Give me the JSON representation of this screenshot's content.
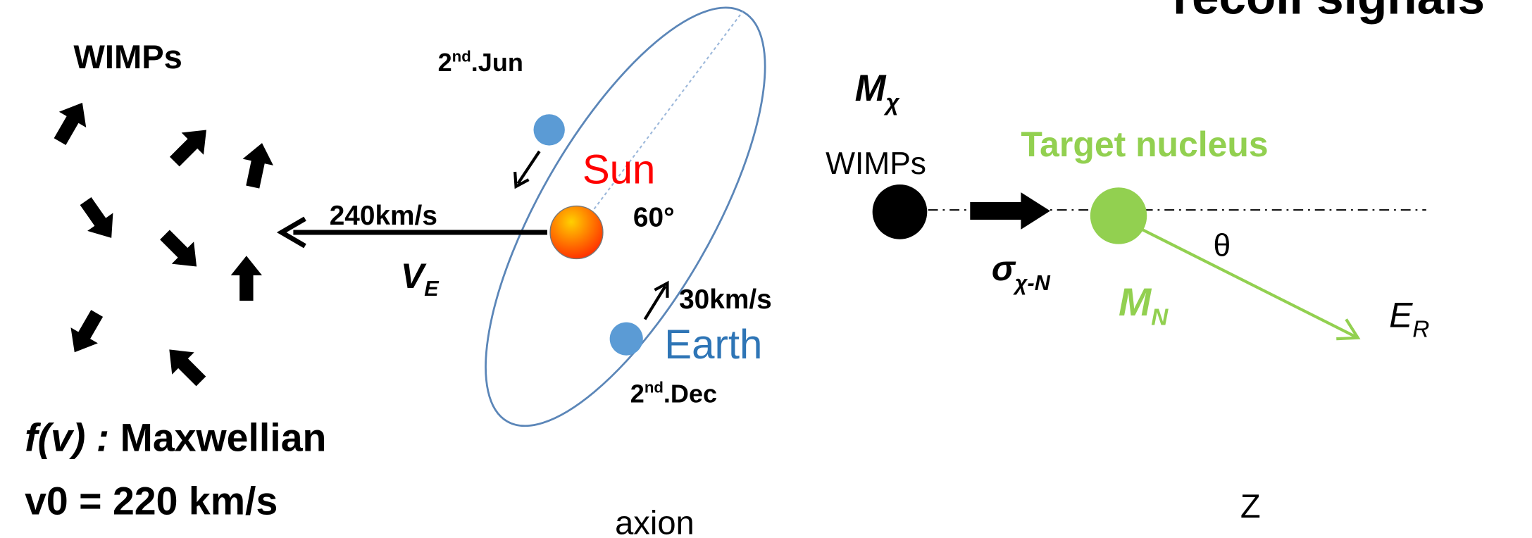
{
  "title": "recoil signals",
  "halo": {
    "label": "WIMPs",
    "distribution": {
      "func": "f(v) :",
      "name": "Maxwellian"
    },
    "v0": "v0 = 220 km/s"
  },
  "orbit": {
    "june": {
      "num": "2",
      "sup": "nd",
      "text": ".Jun"
    },
    "sun": "Sun",
    "angle": "60°",
    "sun_speed": "240km/s",
    "ve": {
      "main": "V",
      "sub": "E"
    },
    "earth_speed": "30km/s",
    "earth": "Earth",
    "december": {
      "num": "2",
      "sup": "nd",
      "text": ".Dec"
    },
    "caption": "axion"
  },
  "scattering": {
    "mass": {
      "main": "M",
      "sub": "χ"
    },
    "wimp": "WIMPs",
    "target": "Target nucleus",
    "angle": "θ",
    "cross_section": {
      "main": "σ",
      "sub": "χ-N"
    },
    "nucleus_mass": {
      "main": "M",
      "sub": "N"
    },
    "recoil": {
      "main": "E",
      "sub": "R"
    },
    "caption": "Z"
  }
}
